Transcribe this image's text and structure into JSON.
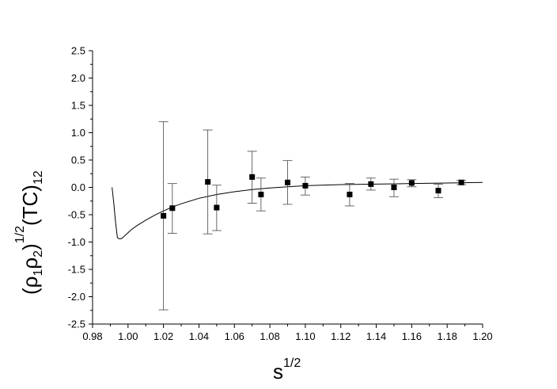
{
  "chart_data": {
    "type": "scatter",
    "title": "",
    "xlabel": "s",
    "xlabel_sup": "1/2",
    "ylabel": {
      "open": "(ρ",
      "sub1": "1",
      "mid": "ρ",
      "sub2": "2",
      "close": ")",
      "sup": "1/2",
      "tail": "(TC)",
      "sub3": "12"
    },
    "xlim": [
      0.98,
      1.2
    ],
    "ylim": [
      -2.5,
      2.5
    ],
    "x_ticks": [
      0.98,
      1.0,
      1.02,
      1.04,
      1.06,
      1.08,
      1.1,
      1.12,
      1.14,
      1.16,
      1.18,
      1.2
    ],
    "x_tick_labels": [
      "0.98",
      "1.00",
      "1.02",
      "1.04",
      "1.06",
      "1.08",
      "1.10",
      "1.12",
      "1.14",
      "1.16",
      "1.18",
      "1.20"
    ],
    "y_ticks": [
      -2.5,
      -2.0,
      -1.5,
      -1.0,
      -0.5,
      0.0,
      0.5,
      1.0,
      1.5,
      2.0,
      2.5
    ],
    "y_tick_labels": [
      "-2.5",
      "-2.0",
      "-1.5",
      "-1.0",
      "-0.5",
      "0.0",
      "0.5",
      "1.0",
      "1.5",
      "2.0",
      "2.5"
    ],
    "grid": false,
    "legend": "none",
    "series": [
      {
        "kind": "scatter-errorbars",
        "marker": "filled-square",
        "color": "#000000",
        "points": [
          {
            "x": 1.02,
            "y": -0.52,
            "lo": -2.24,
            "hi": 1.2
          },
          {
            "x": 1.025,
            "y": -0.38,
            "lo": -0.84,
            "hi": 0.07
          },
          {
            "x": 1.045,
            "y": 0.1,
            "lo": -0.85,
            "hi": 1.05
          },
          {
            "x": 1.05,
            "y": -0.37,
            "lo": -0.79,
            "hi": 0.04
          },
          {
            "x": 1.07,
            "y": 0.19,
            "lo": -0.29,
            "hi": 0.66
          },
          {
            "x": 1.075,
            "y": -0.13,
            "lo": -0.43,
            "hi": 0.17
          },
          {
            "x": 1.09,
            "y": 0.09,
            "lo": -0.31,
            "hi": 0.49
          },
          {
            "x": 1.1,
            "y": 0.03,
            "lo": -0.14,
            "hi": 0.19
          },
          {
            "x": 1.125,
            "y": -0.13,
            "lo": -0.34,
            "hi": 0.07
          },
          {
            "x": 1.137,
            "y": 0.06,
            "lo": -0.05,
            "hi": 0.17
          },
          {
            "x": 1.15,
            "y": 0.0,
            "lo": -0.17,
            "hi": 0.15
          },
          {
            "x": 1.16,
            "y": 0.08,
            "lo": 0.01,
            "hi": 0.14
          },
          {
            "x": 1.175,
            "y": -0.06,
            "lo": -0.19,
            "hi": 0.06
          },
          {
            "x": 1.188,
            "y": 0.09,
            "lo": 0.05,
            "hi": 0.13
          }
        ]
      },
      {
        "kind": "line",
        "color": "#000000",
        "x": [
          0.991,
          0.992,
          0.993,
          0.994,
          0.995,
          0.996,
          0.997,
          0.998,
          1.0,
          1.002,
          1.005,
          1.01,
          1.015,
          1.02,
          1.025,
          1.03,
          1.04,
          1.05,
          1.06,
          1.07,
          1.08,
          1.09,
          1.1,
          1.12,
          1.14,
          1.16,
          1.18,
          1.2
        ],
        "y": [
          0.0,
          -0.3,
          -0.65,
          -0.92,
          -0.94,
          -0.94,
          -0.92,
          -0.89,
          -0.83,
          -0.77,
          -0.7,
          -0.6,
          -0.51,
          -0.43,
          -0.36,
          -0.3,
          -0.2,
          -0.13,
          -0.08,
          -0.04,
          -0.01,
          0.01,
          0.03,
          0.05,
          0.06,
          0.07,
          0.08,
          0.09
        ]
      }
    ]
  }
}
